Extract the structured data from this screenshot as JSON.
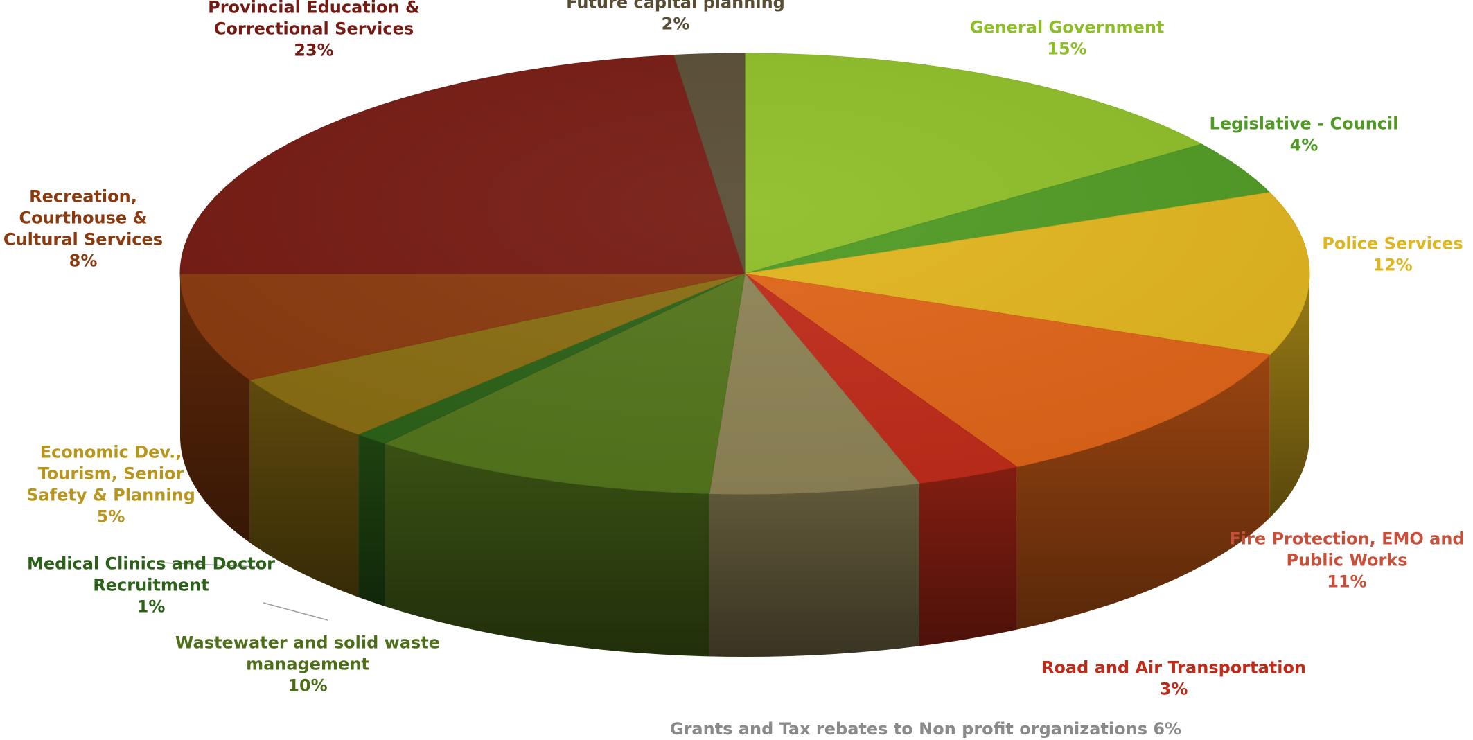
{
  "chart_data": {
    "type": "pie",
    "style": "3d",
    "start_angle": "12 o'clock",
    "direction": "clockwise",
    "slices": [
      {
        "name": "General Government",
        "label_lines": [
          "General Government"
        ],
        "value_label": "15%",
        "value": 15,
        "color": "#8DBE27",
        "label_color": "#8DBE27"
      },
      {
        "name": "Legislative - Council",
        "label_lines": [
          "Legislative - Council"
        ],
        "value_label": "4%",
        "value": 4,
        "color": "#4F9A24",
        "label_color": "#4F9A24"
      },
      {
        "name": "Police Services",
        "label_lines": [
          "Police Services"
        ],
        "value_label": "12%",
        "value": 12,
        "color": "#E1B51E",
        "label_color": "#E1B51E"
      },
      {
        "name": "Fire Protection, EMO and Public Works",
        "label_lines": [
          "Fire Protection, EMO and",
          "Public Works"
        ],
        "value_label": "11%",
        "value": 11,
        "color": "#E06418",
        "label_color": "#C8503A"
      },
      {
        "name": "Road and Air Transportation",
        "label_lines": [
          "Road and Air Transportation"
        ],
        "value_label": "3%",
        "value": 3,
        "color": "#C02B19",
        "label_color": "#C02B19"
      },
      {
        "name": "Grants and Tax rebates to Non profit organizations",
        "label_lines": [
          "Grants and Tax rebates to Non profit organizations 6%"
        ],
        "value_label": "",
        "value": 6,
        "color": "#8E8355",
        "label_color": "#8A8A8A"
      },
      {
        "name": "Wastewater and solid waste management",
        "label_lines": [
          "Wastewater and solid waste",
          "management"
        ],
        "value_label": "10%",
        "value": 10,
        "color": "#53751C",
        "label_color": "#4E6E1A"
      },
      {
        "name": "Medical Clinics and Doctor Recruitment",
        "label_lines": [
          "Medical Clinics and Doctor",
          "Recruitment"
        ],
        "value_label": "1%",
        "value": 1,
        "color": "#2B6118",
        "label_color": "#2B6118"
      },
      {
        "name": "Economic Dev., Tourism, Senior Safety & Planning",
        "label_lines": [
          "Economic Dev.,",
          "Tourism, Senior",
          "Safety & Planning"
        ],
        "value_label": "5%",
        "value": 5,
        "color": "#8A6D12",
        "label_color": "#B8961E"
      },
      {
        "name": "Recreation, Courthouse & Cultural Services",
        "label_lines": [
          "Recreation,",
          "Courthouse &",
          "Cultural Services"
        ],
        "value_label": "8%",
        "value": 8,
        "color": "#8A3A0E",
        "label_color": "#8A3A0E"
      },
      {
        "name": "Provincial Education & Correctional Services",
        "label_lines": [
          "Provincial Education &",
          "Correctional Services"
        ],
        "value_label": "23%",
        "value": 23,
        "color": "#751A12",
        "label_color": "#751A12"
      },
      {
        "name": "Future capital planning",
        "label_lines": [
          "Future capital planning"
        ],
        "value_label": "2%",
        "value": 2,
        "color": "#584C33",
        "label_color": "#584C33"
      }
    ]
  }
}
